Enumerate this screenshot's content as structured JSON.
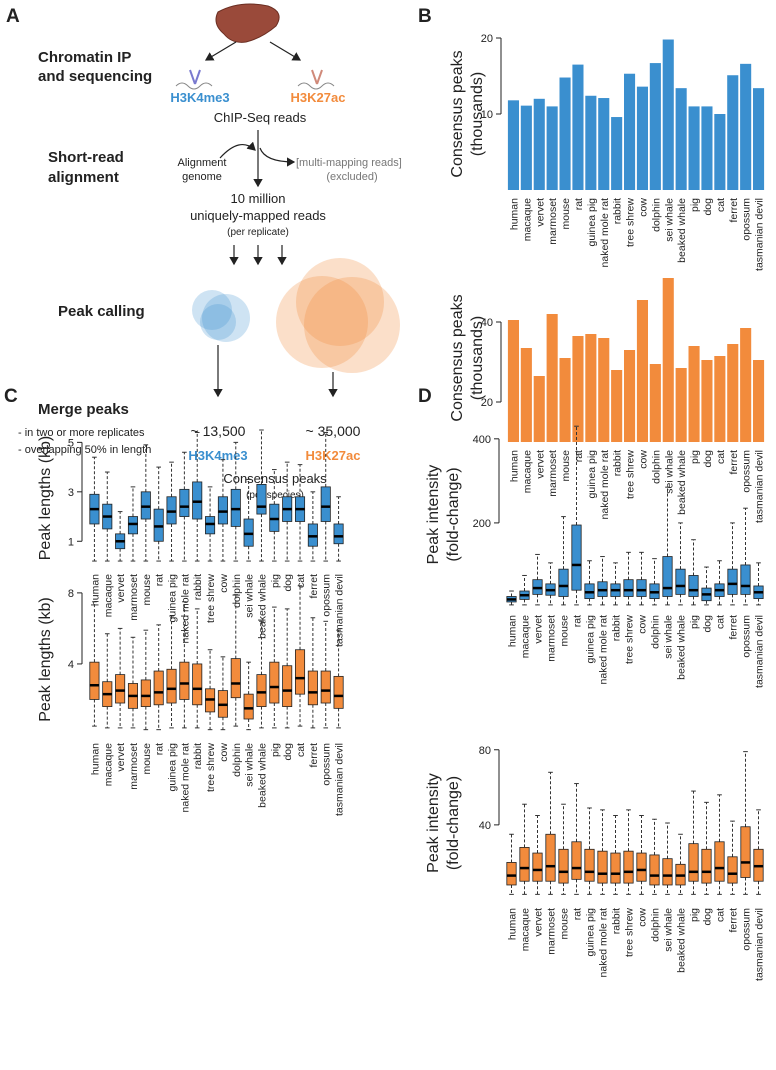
{
  "panel_labels": [
    "A",
    "B",
    "C",
    "D"
  ],
  "diagram": {
    "step_chip": [
      "Chromatin IP",
      "and sequencing"
    ],
    "mark_left": "H3K4me3",
    "mark_right": "H3K27ac",
    "reads": "ChIP-Seq reads",
    "step_align": [
      "Short-read",
      "alignment"
    ],
    "genome": [
      "Alignment",
      "genome"
    ],
    "excluded": [
      "[multi-mapping reads]",
      "(excluded)"
    ],
    "unique": [
      "10 million",
      "uniquely-mapped reads"
    ],
    "per_replicate": "(per replicate)",
    "step_peak": "Peak calling",
    "step_merge": "Merge peaks",
    "merge_rules": [
      "- in two or more replicates",
      "- overlapping 50% in length"
    ],
    "count_left": "~ 13,500",
    "count_right": "~ 35,000",
    "consensus": "Consensus peaks",
    "per_species": "(per species)"
  },
  "chart_data": [
    {
      "type": "bar",
      "ylabel": [
        "Consensus peaks",
        "(thousands)"
      ],
      "color": "#3a8fcf",
      "categories": [
        "human",
        "macaque",
        "vervet",
        "marmoset",
        "mouse",
        "rat",
        "guinea pig",
        "naked mole rat",
        "rabbit",
        "tree shrew",
        "cow",
        "dolphin",
        "sei whale",
        "beaked whale",
        "pig",
        "dog",
        "cat",
        "ferret",
        "opossum",
        "tasmanian devil"
      ],
      "values": [
        11.8,
        11.1,
        12.0,
        11.0,
        14.8,
        16.5,
        12.4,
        12.1,
        9.6,
        15.3,
        13.6,
        16.7,
        19.8,
        13.4,
        11.0,
        11.0,
        10.0,
        15.1,
        16.6,
        13.4
      ],
      "ylim": [
        0,
        20
      ],
      "yticks": [
        10,
        20
      ]
    },
    {
      "type": "bar",
      "ylabel": [
        "Consensus peaks",
        "(thousands)"
      ],
      "color": "#f28b3c",
      "categories": [
        "human",
        "macaque",
        "vervet",
        "marmoset",
        "mouse",
        "rat",
        "guinea pig",
        "naked mole rat",
        "rabbit",
        "tree shrew",
        "cow",
        "dolphin",
        "sei whale",
        "beaked whale",
        "pig",
        "dog",
        "cat",
        "ferret",
        "opossum",
        "tasmanian devil"
      ],
      "values": [
        40.5,
        33.5,
        26.5,
        42,
        31,
        36.5,
        37,
        36,
        28,
        33,
        45.5,
        29.5,
        51,
        28.5,
        34,
        30.5,
        31.5,
        34.5,
        38.5,
        30.5
      ],
      "ylim": [
        10,
        52
      ],
      "yticks": [
        20,
        40
      ]
    },
    {
      "type": "box",
      "ylabel": [
        "Peak lengths (kb)"
      ],
      "color": "#3a8fcf",
      "categories": [
        "human",
        "macaque",
        "vervet",
        "marmoset",
        "mouse",
        "rat",
        "guinea pig",
        "naked mole rat",
        "rabbit",
        "tree shrew",
        "cow",
        "dolphin",
        "sei whale",
        "beaked whale",
        "pig",
        "dog",
        "cat",
        "ferret",
        "opossum",
        "tasmanian devil"
      ],
      "whisker_low": [
        0.2,
        0.2,
        0.2,
        0.2,
        0.2,
        0.2,
        0.2,
        0.2,
        0.2,
        0.2,
        0.2,
        0.2,
        0.2,
        0.2,
        0.2,
        0.2,
        0.2,
        0.2,
        0.2,
        0.2
      ],
      "q1": [
        1.7,
        1.5,
        0.7,
        1.3,
        1.9,
        1.0,
        1.7,
        2.0,
        1.9,
        1.3,
        1.7,
        1.6,
        0.8,
        2.1,
        1.4,
        1.8,
        1.8,
        0.8,
        1.8,
        0.9
      ],
      "median": [
        2.3,
        2.0,
        1.0,
        1.7,
        2.4,
        1.6,
        2.2,
        2.4,
        2.6,
        1.7,
        2.2,
        2.3,
        1.3,
        2.4,
        1.9,
        2.3,
        2.3,
        1.2,
        2.4,
        1.2
      ],
      "q3": [
        2.9,
        2.5,
        1.3,
        2.0,
        3.0,
        2.3,
        2.8,
        3.1,
        3.4,
        2.0,
        2.8,
        3.1,
        1.9,
        3.3,
        2.5,
        2.8,
        2.8,
        1.7,
        3.2,
        1.7
      ],
      "whisker_high": [
        4.4,
        3.8,
        2.2,
        3.2,
        4.9,
        4.0,
        4.2,
        4.6,
        5.4,
        3.2,
        4.3,
        5.0,
        3.5,
        5.5,
        3.9,
        4.2,
        4.1,
        3.0,
        5.4,
        2.8
      ],
      "ylim": [
        0,
        5.5
      ],
      "yticks": [
        1,
        3,
        5
      ]
    },
    {
      "type": "box",
      "ylabel": [
        "Peak lengths (kb)"
      ],
      "color": "#f28b3c",
      "categories": [
        "human",
        "macaque",
        "vervet",
        "marmoset",
        "mouse",
        "rat",
        "guinea pig",
        "naked mole rat",
        "rabbit",
        "tree shrew",
        "cow",
        "dolphin",
        "sei whale",
        "beaked whale",
        "pig",
        "dog",
        "cat",
        "ferret",
        "opossum",
        "tasmanian devil"
      ],
      "whisker_low": [
        0.5,
        0.4,
        0.4,
        0.4,
        0.3,
        0.3,
        0.4,
        0.4,
        0.4,
        0.3,
        0.3,
        0.5,
        0.3,
        0.4,
        0.4,
        0.4,
        0.5,
        0.4,
        0.4,
        0.4
      ],
      "q1": [
        2.0,
        1.6,
        1.8,
        1.5,
        1.6,
        1.7,
        1.8,
        2.0,
        1.7,
        1.3,
        1.0,
        2.1,
        0.9,
        1.6,
        1.8,
        1.6,
        2.3,
        1.7,
        1.8,
        1.5
      ],
      "median": [
        2.8,
        2.3,
        2.5,
        2.2,
        2.2,
        2.4,
        2.6,
        2.9,
        2.6,
        2.0,
        1.7,
        2.9,
        1.5,
        2.4,
        2.7,
        2.5,
        3.2,
        2.4,
        2.5,
        2.2
      ],
      "q3": [
        4.1,
        3.0,
        3.4,
        2.9,
        3.1,
        3.6,
        3.7,
        4.1,
        4.0,
        2.6,
        2.5,
        4.3,
        2.3,
        3.4,
        4.1,
        3.9,
        4.8,
        3.6,
        3.6,
        3.3
      ],
      "whisker_high": [
        7.5,
        5.7,
        6.0,
        5.5,
        5.9,
        6.2,
        6.7,
        7.5,
        7.1,
        4.8,
        4.4,
        7.9,
        4.1,
        6.4,
        7.2,
        7.1,
        8.4,
        6.6,
        6.4,
        5.9
      ],
      "ylim": [
        0,
        8.5
      ],
      "yticks": [
        4,
        8
      ]
    },
    {
      "type": "box",
      "ylabel": [
        "Peak intensity",
        "(fold-change)"
      ],
      "color": "#3a8fcf",
      "categories": [
        "human",
        "macaque",
        "vervet",
        "marmoset",
        "mouse",
        "rat",
        "guinea pig",
        "naked mole rat",
        "rabbit",
        "tree shrew",
        "cow",
        "dolphin",
        "sei whale",
        "beaked whale",
        "pig",
        "dog",
        "cat",
        "ferret",
        "opossum",
        "tasmanian devil"
      ],
      "whisker_low": [
        5,
        5,
        5,
        5,
        5,
        5,
        5,
        5,
        5,
        5,
        5,
        5,
        5,
        5,
        5,
        5,
        5,
        5,
        5,
        5
      ],
      "q1": [
        12,
        18,
        30,
        28,
        25,
        40,
        20,
        25,
        25,
        25,
        25,
        20,
        25,
        30,
        25,
        15,
        25,
        30,
        30,
        20
      ],
      "median": [
        18,
        28,
        45,
        40,
        50,
        100,
        35,
        40,
        40,
        40,
        40,
        35,
        45,
        50,
        40,
        30,
        40,
        55,
        50,
        35
      ],
      "q3": [
        25,
        38,
        65,
        55,
        90,
        195,
        55,
        60,
        55,
        65,
        65,
        55,
        120,
        90,
        75,
        45,
        55,
        90,
        100,
        50
      ],
      "whisker_high": [
        38,
        75,
        125,
        105,
        215,
        430,
        110,
        120,
        105,
        130,
        130,
        115,
        285,
        200,
        160,
        95,
        110,
        200,
        235,
        105
      ],
      "ylim": [
        0,
        440
      ],
      "yticks": [
        200,
        400
      ]
    },
    {
      "type": "box",
      "ylabel": [
        "Peak intensity",
        "(fold-change)"
      ],
      "color": "#f28b3c",
      "categories": [
        "human",
        "macaque",
        "vervet",
        "marmoset",
        "mouse",
        "rat",
        "guinea pig",
        "naked mole rat",
        "rabbit",
        "tree shrew",
        "cow",
        "dolphin",
        "sei whale",
        "beaked whale",
        "pig",
        "dog",
        "cat",
        "ferret",
        "opossum",
        "tasmanian devil"
      ],
      "whisker_low": [
        3,
        3,
        3,
        3,
        3,
        3,
        3,
        3,
        3,
        3,
        3,
        3,
        3,
        3,
        3,
        3,
        3,
        3,
        3,
        3
      ],
      "q1": [
        8,
        10,
        10,
        10,
        9,
        11,
        10,
        9,
        9,
        9,
        10,
        8,
        8,
        8,
        10,
        9,
        10,
        9,
        12,
        10
      ],
      "median": [
        13,
        17,
        16,
        18,
        15,
        17,
        15,
        14,
        14,
        15,
        16,
        13,
        13,
        13,
        15,
        15,
        17,
        14,
        20,
        18
      ],
      "q3": [
        20,
        28,
        25,
        35,
        27,
        31,
        27,
        26,
        25,
        26,
        25,
        24,
        22,
        19,
        30,
        27,
        31,
        23,
        39,
        27
      ],
      "whisker_high": [
        35,
        51,
        45,
        68,
        51,
        62,
        49,
        48,
        45,
        48,
        45,
        43,
        41,
        35,
        58,
        52,
        56,
        42,
        79,
        48
      ],
      "ylim": [
        0,
        82
      ],
      "yticks": [
        40,
        80
      ]
    }
  ]
}
